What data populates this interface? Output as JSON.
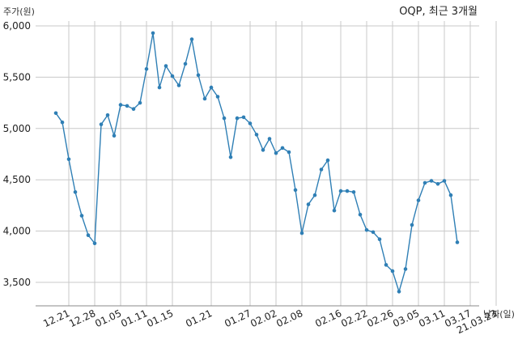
{
  "chart_data": {
    "type": "line",
    "title": "OQP, 최근 3개월",
    "ylabel": "주가(원)",
    "xlabel": "날짜(일)",
    "ylim": [
      3250,
      6100
    ],
    "yticks": [
      3500,
      4000,
      4500,
      5000,
      5500,
      6000
    ],
    "ytick_labels": [
      "3,500",
      "4,000",
      "4,500",
      "5,000",
      "5,500",
      "6,000"
    ],
    "xtick_indices": [
      2,
      6,
      10,
      14,
      18,
      24,
      30,
      34,
      38,
      44,
      48,
      52,
      56,
      60,
      64,
      68
    ],
    "xtick_labels": [
      "12.21",
      "12.28",
      "01.05",
      "01.11",
      "01.15",
      "01.21",
      "01.27",
      "02.02",
      "02.08",
      "02.16",
      "02.22",
      "02.26",
      "03.05",
      "03.11",
      "03.17",
      "21.03.23"
    ],
    "grid": true,
    "line_color": "#2f7fb5",
    "series": [
      {
        "values": [
          5150,
          5060,
          4700,
          4380,
          4150,
          3960,
          3880,
          5040,
          5130,
          4930,
          5230,
          5220,
          5190,
          5250,
          5580,
          5930,
          5400,
          5610,
          5510,
          5420,
          5630,
          5870,
          5520,
          5290,
          5400,
          5310,
          5100,
          4720,
          5100,
          5110,
          5050,
          4940,
          4790,
          4900,
          4760,
          4810,
          4770,
          4400,
          3980,
          4260,
          4350,
          4600,
          4690,
          4200,
          4390,
          4390,
          4380,
          4160,
          4010,
          3990,
          3920,
          3670,
          3610,
          3410,
          3630,
          4060,
          4300,
          4470,
          4490,
          4460,
          4490,
          4350,
          3890
        ]
      }
    ]
  }
}
